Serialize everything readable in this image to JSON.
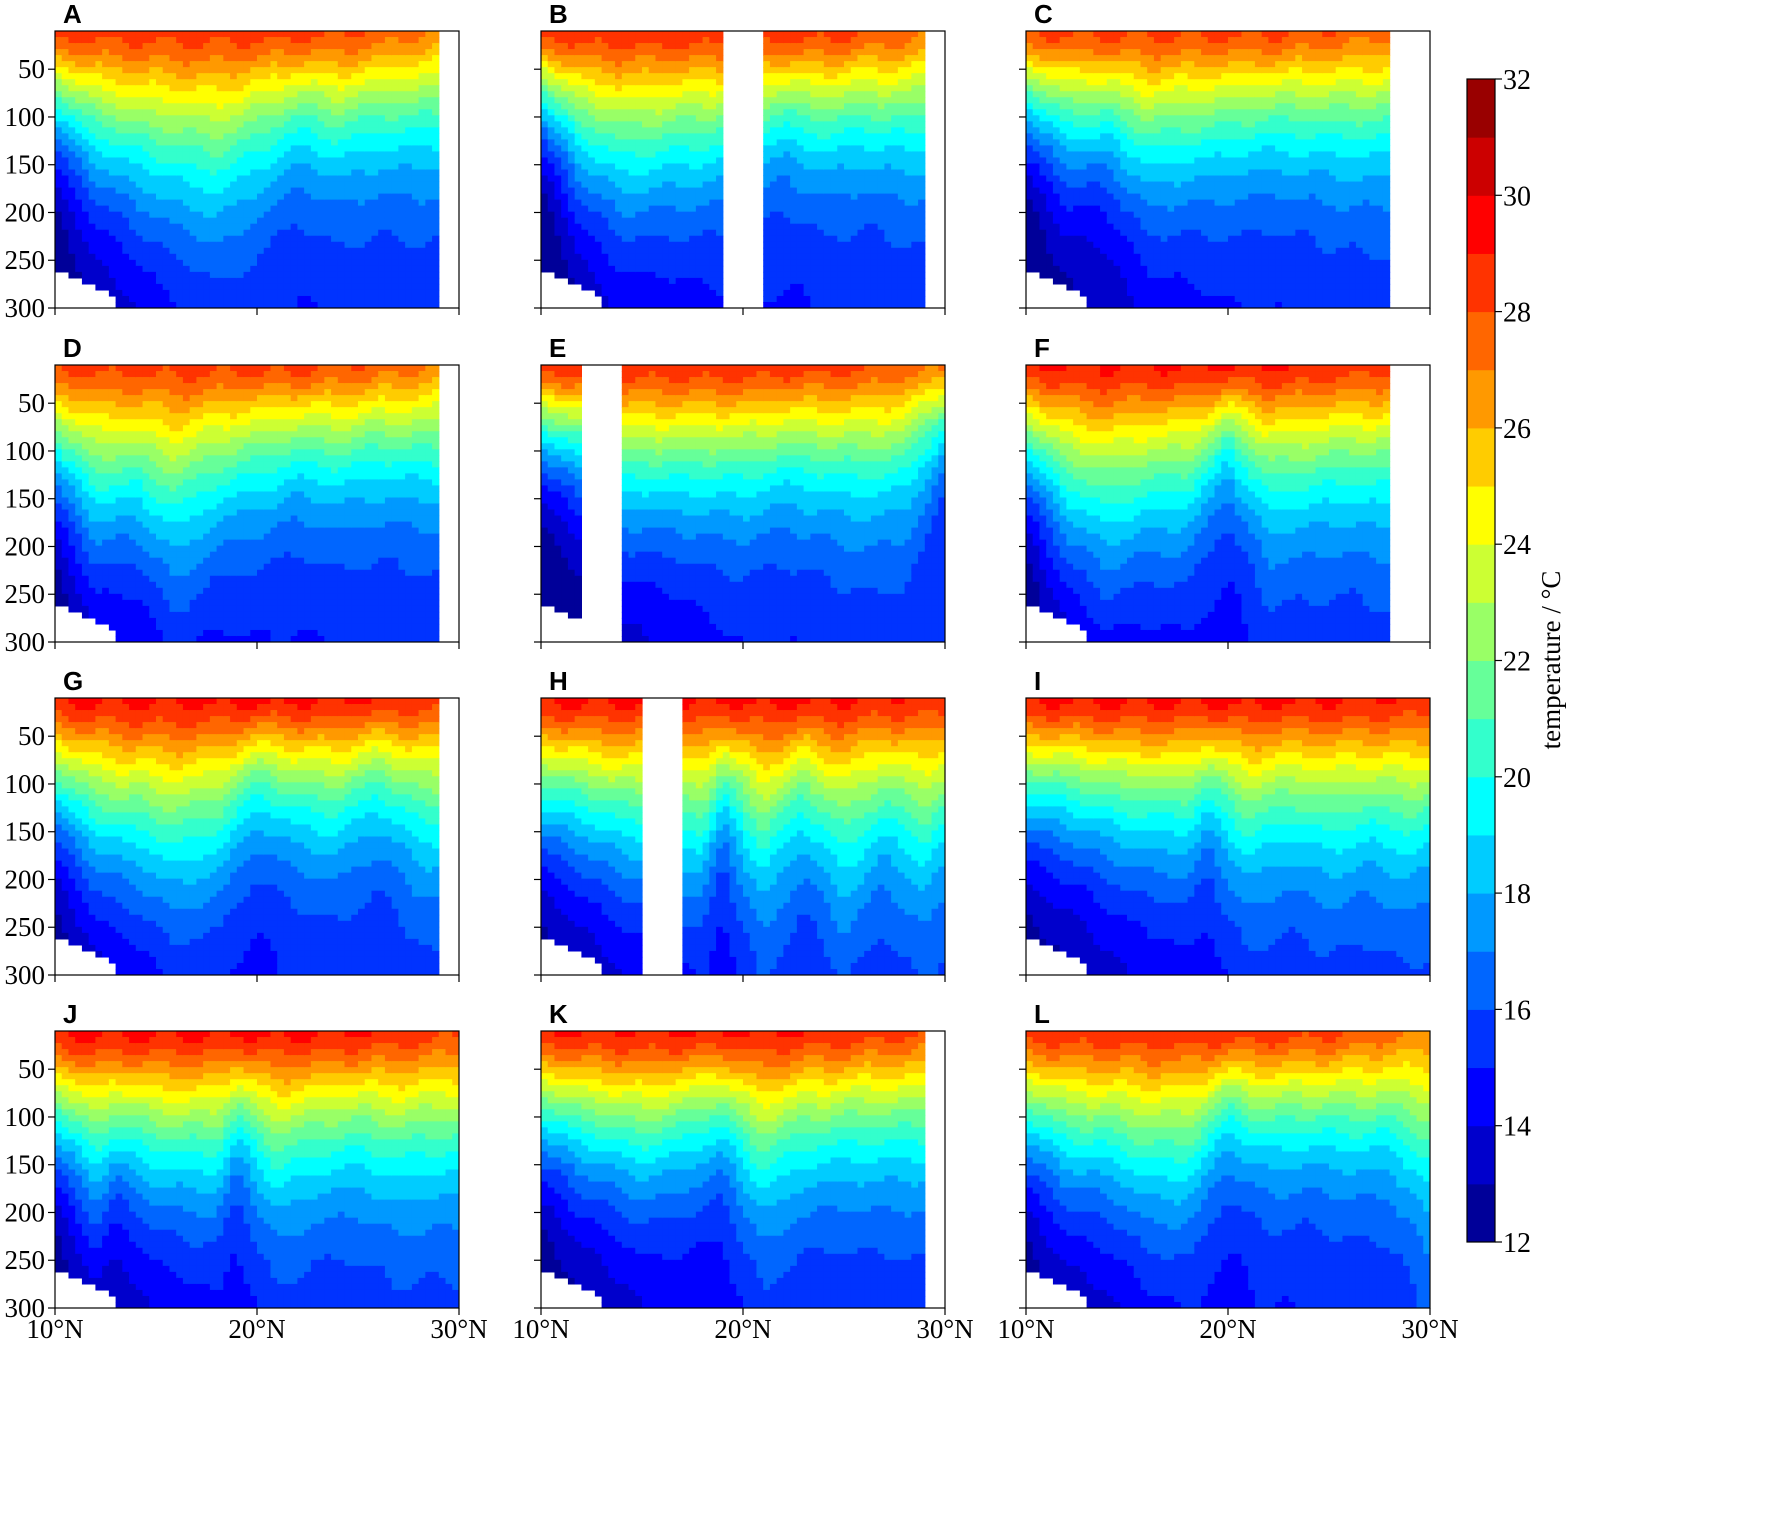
{
  "chart_data": {
    "type": "contourf",
    "panels": [
      {
        "label": "A",
        "lat_max": 29.1,
        "gaps": [],
        "max_t": 28.4,
        "mix": 0.12,
        "tc": 0.8,
        "therm": [
          [
            10,
            80
          ],
          [
            12,
            110
          ],
          [
            15,
            125
          ],
          [
            18,
            130
          ],
          [
            20,
            105
          ],
          [
            22,
            85
          ],
          [
            24,
            95
          ],
          [
            26,
            88
          ],
          [
            28,
            90
          ],
          [
            29,
            88
          ]
        ],
        "warm_n": 0.9
      },
      {
        "label": "B",
        "lat_max": 29.1,
        "gaps": [
          [
            19,
            21
          ]
        ],
        "max_t": 28.6,
        "mix": 0.12,
        "tc": 0.8,
        "therm": [
          [
            10,
            70
          ],
          [
            12,
            110
          ],
          [
            14,
            125
          ],
          [
            16,
            115
          ],
          [
            18,
            105
          ],
          [
            22,
            80
          ],
          [
            24,
            90
          ],
          [
            26,
            85
          ],
          [
            28,
            90
          ],
          [
            29,
            90
          ]
        ],
        "warm_n": 0.8
      },
      {
        "label": "C",
        "lat_max": 28.1,
        "gaps": [],
        "max_t": 28.2,
        "mix": 0.1,
        "tc": 0.8,
        "therm": [
          [
            10,
            75
          ],
          [
            12,
            100
          ],
          [
            14,
            95
          ],
          [
            16,
            115
          ],
          [
            18,
            105
          ],
          [
            20,
            95
          ],
          [
            22,
            90
          ],
          [
            24,
            92
          ],
          [
            26,
            95
          ],
          [
            28,
            95
          ]
        ],
        "warm_n": 0.8
      },
      {
        "label": "D",
        "lat_max": 29.1,
        "gaps": [],
        "max_t": 28.3,
        "mix": 0.11,
        "tc": 0.8,
        "therm": [
          [
            10,
            90
          ],
          [
            12,
            130
          ],
          [
            14,
            120
          ],
          [
            16,
            140
          ],
          [
            18,
            110
          ],
          [
            20,
            95
          ],
          [
            22,
            85
          ],
          [
            24,
            90
          ],
          [
            26,
            85
          ],
          [
            28,
            88
          ],
          [
            29,
            90
          ]
        ],
        "warm_n": 0.9
      },
      {
        "label": "E",
        "lat_max": 30.0,
        "gaps": [
          [
            12,
            14
          ]
        ],
        "max_t": 28.6,
        "mix": 0.13,
        "tc": 0.9,
        "therm": [
          [
            10,
            80
          ],
          [
            12,
            95
          ],
          [
            14,
            125
          ],
          [
            16,
            120
          ],
          [
            18,
            115
          ],
          [
            20,
            110
          ],
          [
            22,
            100
          ],
          [
            24,
            105
          ],
          [
            26,
            110
          ],
          [
            28,
            105
          ],
          [
            30,
            60
          ]
        ],
        "warm_n": 0.7
      },
      {
        "label": "F",
        "lat_max": 28.1,
        "gaps": [],
        "max_t": 29.0,
        "mix": 0.15,
        "tc": 0.9,
        "therm": [
          [
            10,
            95
          ],
          [
            12,
            140
          ],
          [
            14,
            155
          ],
          [
            16,
            135
          ],
          [
            18,
            125
          ],
          [
            20,
            80
          ],
          [
            22,
            120
          ],
          [
            24,
            115
          ],
          [
            26,
            110
          ],
          [
            28,
            115
          ]
        ],
        "warm_n": 0.6
      },
      {
        "label": "G",
        "lat_max": 29.1,
        "gaps": [],
        "max_t": 29.2,
        "mix": 0.18,
        "tc": 0.95,
        "therm": [
          [
            10,
            110
          ],
          [
            12,
            145
          ],
          [
            14,
            150
          ],
          [
            16,
            160
          ],
          [
            18,
            140
          ],
          [
            20,
            95
          ],
          [
            22,
            110
          ],
          [
            24,
            115
          ],
          [
            26,
            95
          ],
          [
            28,
            120
          ],
          [
            29,
            125
          ]
        ],
        "warm_n": 0.5
      },
      {
        "label": "H",
        "lat_max": 30.0,
        "gaps": [
          [
            15,
            17
          ]
        ],
        "max_t": 29.2,
        "mix": 0.2,
        "tc": 0.95,
        "therm": [
          [
            10,
            120
          ],
          [
            12,
            130
          ],
          [
            14,
            140
          ],
          [
            18,
            140
          ],
          [
            19,
            95
          ],
          [
            21,
            150
          ],
          [
            23,
            110
          ],
          [
            25,
            145
          ],
          [
            27,
            115
          ],
          [
            29,
            140
          ],
          [
            30,
            120
          ]
        ],
        "warm_n": 0.3
      },
      {
        "label": "I",
        "lat_max": 30.0,
        "gaps": [],
        "max_t": 29.2,
        "mix": 0.22,
        "tc": 0.95,
        "therm": [
          [
            10,
            115
          ],
          [
            12,
            120
          ],
          [
            15,
            130
          ],
          [
            18,
            125
          ],
          [
            19,
            100
          ],
          [
            21,
            135
          ],
          [
            23,
            120
          ],
          [
            25,
            130
          ],
          [
            27,
            120
          ],
          [
            29,
            130
          ],
          [
            30,
            120
          ]
        ],
        "warm_n": 0.2
      },
      {
        "label": "J",
        "lat_max": 30.0,
        "gaps": [],
        "max_t": 29.2,
        "mix": 0.2,
        "tc": 0.95,
        "therm": [
          [
            10,
            105
          ],
          [
            12,
            145
          ],
          [
            13,
            120
          ],
          [
            15,
            135
          ],
          [
            18,
            130
          ],
          [
            19,
            95
          ],
          [
            21,
            135
          ],
          [
            23,
            120
          ],
          [
            25,
            115
          ],
          [
            27,
            125
          ],
          [
            29,
            120
          ],
          [
            30,
            120
          ]
        ],
        "warm_n": 0.5
      },
      {
        "label": "K",
        "lat_max": 29.1,
        "gaps": [],
        "max_t": 29.0,
        "mix": 0.16,
        "tc": 0.9,
        "therm": [
          [
            10,
            100
          ],
          [
            12,
            115
          ],
          [
            15,
            125
          ],
          [
            17,
            110
          ],
          [
            19,
            90
          ],
          [
            21,
            130
          ],
          [
            23,
            110
          ],
          [
            25,
            105
          ],
          [
            27,
            105
          ],
          [
            29,
            105
          ]
        ],
        "warm_n": 0.6
      },
      {
        "label": "L",
        "lat_max": 30.0,
        "gaps": [],
        "max_t": 28.6,
        "mix": 0.14,
        "tc": 0.85,
        "therm": [
          [
            10,
            100
          ],
          [
            12,
            120
          ],
          [
            14,
            120
          ],
          [
            16,
            130
          ],
          [
            18,
            125
          ],
          [
            20,
            80
          ],
          [
            22,
            95
          ],
          [
            24,
            90
          ],
          [
            26,
            95
          ],
          [
            28,
            95
          ],
          [
            29,
            110
          ],
          [
            30,
            130
          ]
        ],
        "warm_n": 0.9
      }
    ],
    "x_range": [
      10,
      30
    ],
    "x_ticks": [
      10,
      20,
      30
    ],
    "x_tick_labels": [
      "10°N",
      "20°N",
      "30°N"
    ],
    "y_range": [
      10,
      300
    ],
    "y_ticks": [
      50,
      100,
      150,
      200,
      250,
      300
    ],
    "y_tick_labels": [
      "50",
      "100",
      "150",
      "200",
      "250",
      "300"
    ],
    "y_inverted": true,
    "colorbar": {
      "label": "temperature / °C",
      "min": 12,
      "max": 32,
      "step": 1,
      "tick_values": [
        12,
        14,
        16,
        18,
        20,
        22,
        24,
        26,
        28,
        30,
        32
      ],
      "tick_labels": [
        "12",
        "14",
        "16",
        "18",
        "20",
        "22",
        "24",
        "26",
        "28",
        "30",
        "32"
      ],
      "colormap": "jet"
    }
  }
}
